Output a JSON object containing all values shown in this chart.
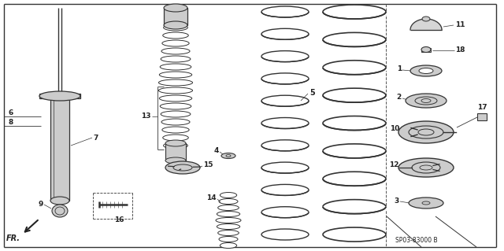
{
  "bg_color": "#ffffff",
  "border_color": "#000000",
  "line_color": "#333333",
  "part_color": "#888888",
  "dark_color": "#222222",
  "code_text": "SP03-83000 B",
  "fr_text": "FR."
}
